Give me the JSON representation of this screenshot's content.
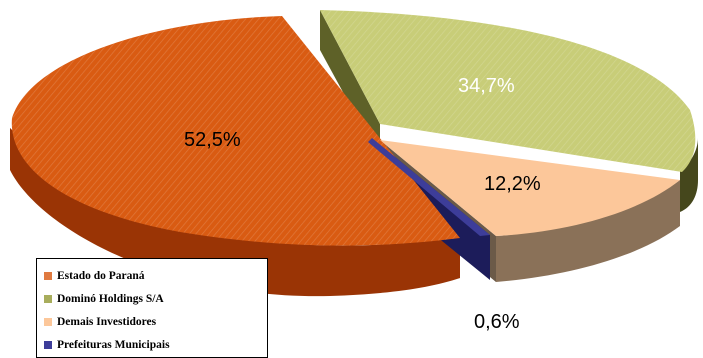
{
  "chart_data": {
    "type": "pie",
    "categories": [
      "Estado do Paraná",
      "Dominó Holdings S/A",
      "Demais Investidores",
      "Prefeituras Municipais"
    ],
    "values": [
      52.5,
      34.7,
      12.2,
      0.6
    ],
    "labels": [
      "52,5%",
      "34,7%",
      "12,2%",
      "0,6%"
    ],
    "legend_position": "bottom-left",
    "three_d": true,
    "exploded": true
  },
  "colors": {
    "estado_do_parana": "#d95b12",
    "domino_holdings": "#c8cd78",
    "demais_investidores": "#fcc79a",
    "prefeituras_municipais": "#3d3d99"
  },
  "legend": {
    "items": [
      {
        "label": "Estado do Paraná",
        "color": "#e07a40"
      },
      {
        "label": "Dominó Holdings S/A",
        "color": "#a8ad5c"
      },
      {
        "label": "Demais Investidores",
        "color": "#fcc79a"
      },
      {
        "label": "Prefeituras Municipais",
        "color": "#3d3d99"
      }
    ]
  }
}
